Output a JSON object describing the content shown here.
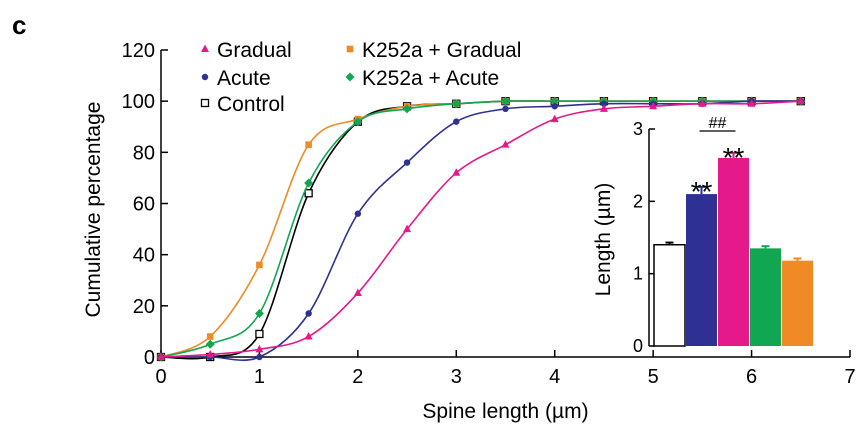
{
  "panel_label": "c",
  "colors": {
    "gradual": "#e5198a",
    "acute": "#2e3192",
    "control": "#000000",
    "k252a_gradual": "#f08a24",
    "k252a_acute": "#11a651"
  },
  "chart_data": [
    {
      "type": "line",
      "xlabel": "Spine length (µm)",
      "ylabel": "Cumulative percentage",
      "xlim": [
        0,
        7
      ],
      "ylim": [
        0,
        120
      ],
      "xticks": [
        0,
        1,
        2,
        3,
        4,
        5,
        6,
        7
      ],
      "yticks": [
        0,
        20,
        40,
        60,
        80,
        100,
        120
      ],
      "legend_position": "top-left",
      "series": [
        {
          "name": "Gradual",
          "color_key": "gradual",
          "marker": "triangle",
          "x": [
            0,
            0.5,
            1,
            1.5,
            2,
            2.5,
            3,
            3.5,
            4,
            4.5,
            5,
            5.5,
            6,
            6.5
          ],
          "y": [
            0,
            1,
            3,
            8,
            25,
            50,
            72,
            83,
            93,
            97,
            98,
            99,
            99,
            100
          ]
        },
        {
          "name": "Acute",
          "color_key": "acute",
          "marker": "circle",
          "x": [
            0,
            0.5,
            1,
            1.5,
            2,
            2.5,
            3,
            3.5,
            4,
            4.5,
            5,
            5.5,
            6,
            6.5
          ],
          "y": [
            0,
            0,
            0,
            17,
            56,
            76,
            92,
            97,
            98,
            99,
            99,
            99,
            100,
            100
          ]
        },
        {
          "name": "Control",
          "color_key": "control",
          "marker": "square-open",
          "x": [
            0,
            0.5,
            1,
            1.5,
            2,
            2.5,
            3,
            3.5,
            4,
            4.5,
            5,
            5.5,
            6,
            6.5
          ],
          "y": [
            0,
            0,
            9,
            64,
            92,
            98,
            99,
            100,
            100,
            100,
            100,
            100,
            100,
            100
          ]
        },
        {
          "name": "K252a + Gradual",
          "color_key": "k252a_gradual",
          "marker": "square",
          "x": [
            0,
            0.5,
            1,
            1.5,
            2,
            2.5,
            3,
            3.5,
            4,
            4.5,
            5,
            5.5,
            6,
            6.5
          ],
          "y": [
            0,
            8,
            36,
            83,
            93,
            98,
            99,
            100,
            100,
            100,
            100,
            100,
            100,
            100
          ]
        },
        {
          "name": "K252a + Acute",
          "color_key": "k252a_acute",
          "marker": "diamond",
          "x": [
            0,
            0.5,
            1,
            1.5,
            2,
            2.5,
            3,
            3.5,
            4,
            4.5,
            5,
            5.5,
            6,
            6.5
          ],
          "y": [
            0,
            5,
            17,
            68,
            92,
            97,
            99,
            100,
            100,
            100,
            100,
            100,
            100,
            100
          ]
        }
      ]
    },
    {
      "type": "bar",
      "ylabel": "Length (µm)",
      "ylim": [
        0,
        3
      ],
      "yticks": [
        0,
        1,
        2,
        3
      ],
      "categories": [
        "Control",
        "Acute",
        "Gradual",
        "K252a + Acute",
        "K252a + Gradual"
      ],
      "values": [
        1.4,
        2.1,
        2.6,
        1.35,
        1.18
      ],
      "errors": [
        0.03,
        0.1,
        0.07,
        0.03,
        0.03
      ],
      "colors": [
        "#ffffff",
        "#2e3192",
        "#e5198a",
        "#11a651",
        "#f08a24"
      ],
      "annotations": [
        {
          "bar": 1,
          "text": "**"
        },
        {
          "bar": 2,
          "text": "**"
        },
        {
          "bars": [
            1,
            2
          ],
          "text": "##"
        }
      ]
    }
  ]
}
